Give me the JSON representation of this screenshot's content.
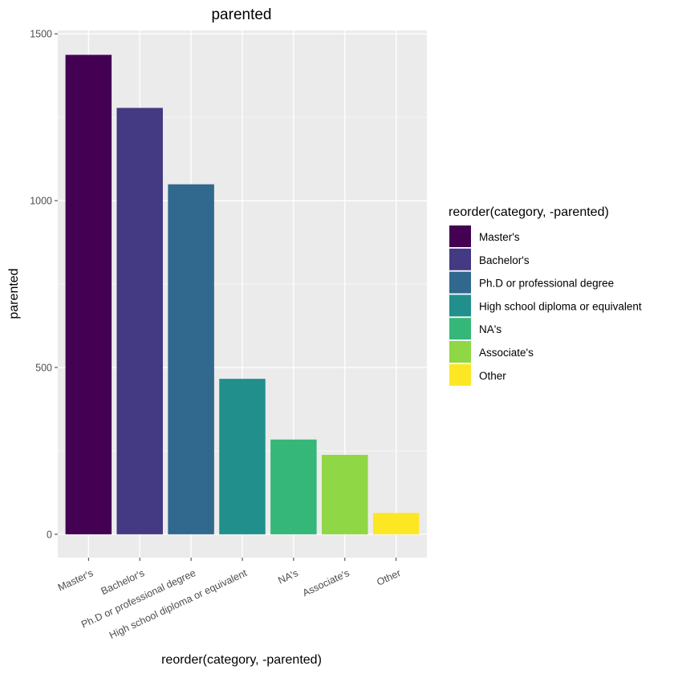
{
  "chart_data": {
    "type": "bar",
    "title": "parented",
    "xlabel": "reorder(category, -parented)",
    "ylabel": "parented",
    "categories": [
      "Master's",
      "Bachelor's",
      "Ph.D or professional degree",
      "High school diploma or equivalent",
      "NA's",
      "Associate's",
      "Other"
    ],
    "values": [
      1437,
      1278,
      1049,
      466,
      284,
      238,
      64
    ],
    "colors": [
      "#440154",
      "#443983",
      "#31688E",
      "#21908C",
      "#35B779",
      "#8FD744",
      "#FDE725"
    ],
    "yticks": [
      0,
      500,
      1000,
      1500
    ],
    "ylim": [
      -70,
      1510
    ],
    "grid": true,
    "legend": {
      "title": "reorder(category, -parented)",
      "placement": "right"
    }
  }
}
